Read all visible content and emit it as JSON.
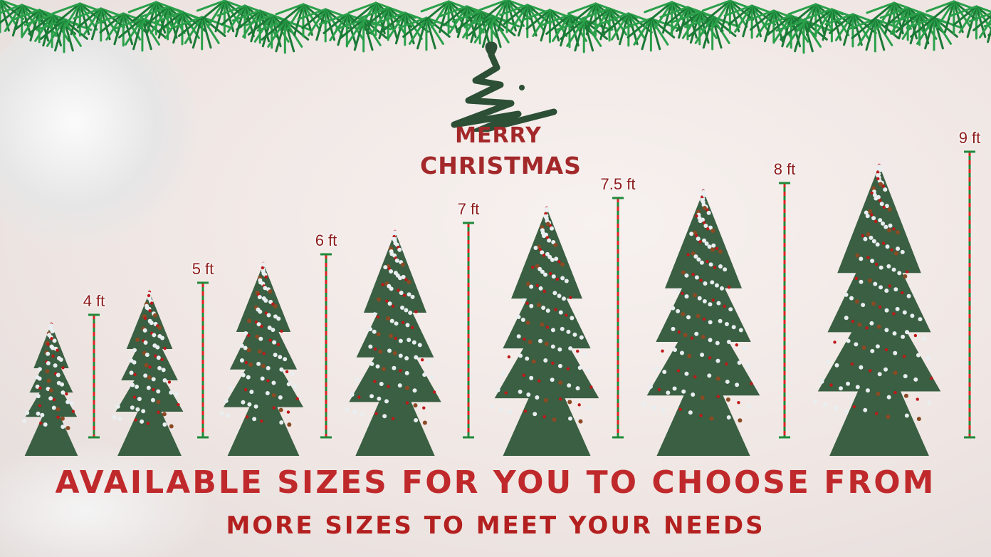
{
  "logo": {
    "line1": "MERRY",
    "line2": "CHRISTMAS"
  },
  "sizes": [
    {
      "label": "4 ft"
    },
    {
      "label": "5 ft"
    },
    {
      "label": "6 ft"
    },
    {
      "label": "7 ft"
    },
    {
      "label": "7.5 ft"
    },
    {
      "label": "8 ft"
    },
    {
      "label": "9 ft"
    }
  ],
  "headline": {
    "title": "AVAILABLE SIZES FOR YOU TO CHOOSE FROM",
    "subtitle": "MORE SIZES TO MEET YOUR NEEDS"
  },
  "colors": {
    "accent_red": "#c0292b",
    "ruler_red": "#e02020",
    "ruler_green": "#1f8a3a",
    "tree_green": "#2f5a3a"
  }
}
